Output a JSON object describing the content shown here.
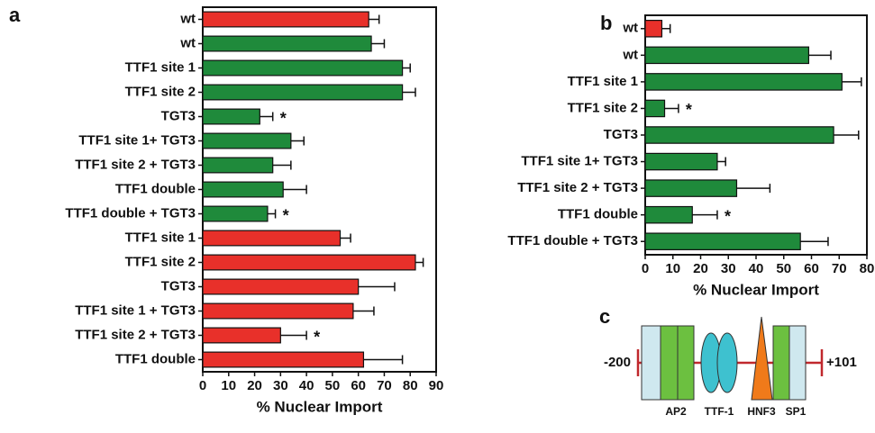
{
  "chart_data": [
    {
      "type": "bar",
      "orientation": "horizontal",
      "panel": "a",
      "xlabel": "% Nuclear Import",
      "categories": [
        "wt",
        "wt",
        "TTF1 site 1",
        "TTF1 site 2",
        "TGT3",
        "TTF1 site 1+ TGT3",
        "TTF1 site 2 + TGT3",
        "TTF1 double",
        "TTF1 double + TGT3",
        "TTF1 site 1",
        "TTF1 site 2",
        "TGT3",
        "TTF1 site 1 + TGT3",
        "TTF1 site 2 + TGT3",
        "TTF1 double"
      ],
      "values": [
        64,
        65,
        77,
        77,
        22,
        34,
        27,
        31,
        25,
        53,
        82,
        60,
        58,
        30,
        62
      ],
      "errors": [
        4,
        5,
        3,
        5,
        5,
        5,
        7,
        9,
        3,
        4,
        3,
        14,
        8,
        10,
        15
      ],
      "colors": [
        "#e8302a",
        "#1f8a3b",
        "#1f8a3b",
        "#1f8a3b",
        "#1f8a3b",
        "#1f8a3b",
        "#1f8a3b",
        "#1f8a3b",
        "#1f8a3b",
        "#e8302a",
        "#e8302a",
        "#e8302a",
        "#e8302a",
        "#e8302a",
        "#e8302a"
      ],
      "annotations": [
        null,
        null,
        null,
        null,
        "*",
        null,
        null,
        null,
        "*",
        null,
        null,
        null,
        null,
        "*",
        null
      ],
      "xlim": [
        0,
        90
      ],
      "xticks": [
        0,
        10,
        20,
        30,
        40,
        50,
        60,
        70,
        80,
        90
      ]
    },
    {
      "type": "bar",
      "orientation": "horizontal",
      "panel": "b",
      "xlabel": "% Nuclear Import",
      "categories": [
        "wt",
        "wt",
        "TTF1 site 1",
        "TTF1 site 2",
        "TGT3",
        "TTF1 site 1+ TGT3",
        "TTF1 site 2 + TGT3",
        "TTF1 double",
        "TTF1 double + TGT3"
      ],
      "values": [
        6,
        59,
        71,
        7,
        68,
        26,
        33,
        17,
        56
      ],
      "errors": [
        3,
        8,
        7,
        5,
        9,
        3,
        12,
        9,
        10
      ],
      "colors": [
        "#e8302a",
        "#1f8a3b",
        "#1f8a3b",
        "#1f8a3b",
        "#1f8a3b",
        "#1f8a3b",
        "#1f8a3b",
        "#1f8a3b",
        "#1f8a3b"
      ],
      "annotations": [
        null,
        null,
        null,
        "*",
        null,
        null,
        null,
        "*",
        null
      ],
      "xlim": [
        0,
        80
      ],
      "xticks": [
        0,
        10,
        20,
        30,
        40,
        50,
        60,
        70,
        80
      ]
    }
  ],
  "diagram": {
    "panel": "c",
    "start": "-200",
    "end": "+101",
    "elements": [
      "AP2",
      "TTF-1",
      "HNF3",
      "SP1"
    ]
  }
}
